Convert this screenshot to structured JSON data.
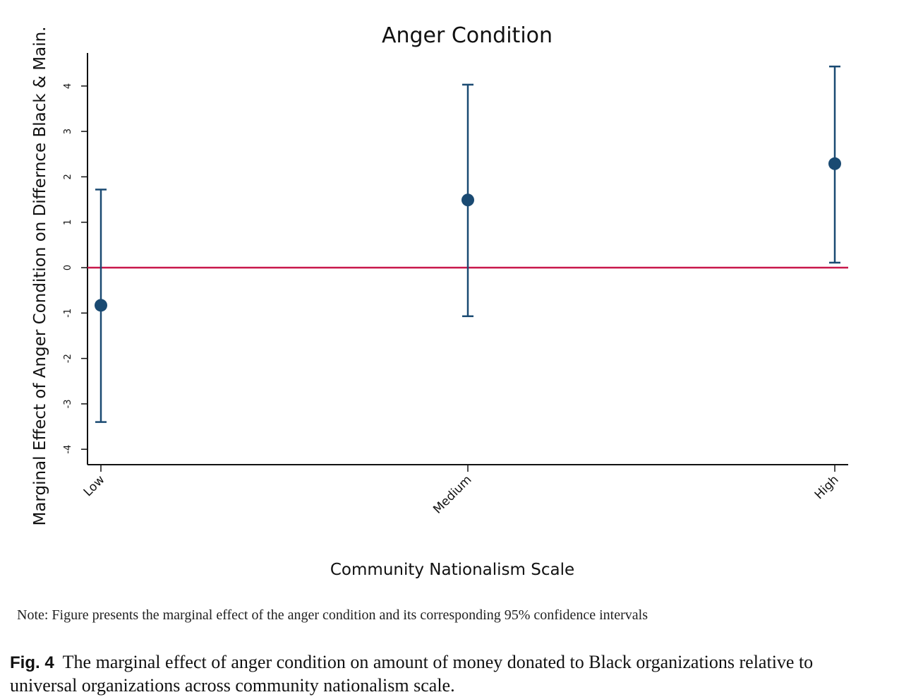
{
  "chart_data": {
    "type": "scatter",
    "title": "Anger Condition",
    "xlabel": "Community Nationalism Scale",
    "ylabel": "Marginal Effect of Anger Condition on Differnce Black & Main.",
    "categories": [
      "Low",
      "Medium",
      "High"
    ],
    "estimates": [
      -0.83,
      1.49,
      2.29
    ],
    "ci_lower": [
      -3.4,
      -1.07,
      0.11
    ],
    "ci_upper": [
      1.72,
      4.03,
      4.43
    ],
    "yticks": [
      -4,
      -3,
      -2,
      -1,
      0,
      1,
      2,
      3,
      4
    ],
    "ylim": [
      -4.3,
      4.7
    ],
    "reference_line": 0,
    "grid": false,
    "colors": {
      "point": "#1a4a72",
      "errorbar": "#1a4a72",
      "reference": "#c8174a",
      "axis": "#111111"
    }
  },
  "note": "Note: Figure presents the marginal effect of the anger condition and its corresponding 95% confidence intervals",
  "caption": {
    "label": "Fig. 4",
    "text": "The marginal effect of anger condition on amount of money donated to Black organizations relative to universal organizations across community nationalism scale."
  }
}
